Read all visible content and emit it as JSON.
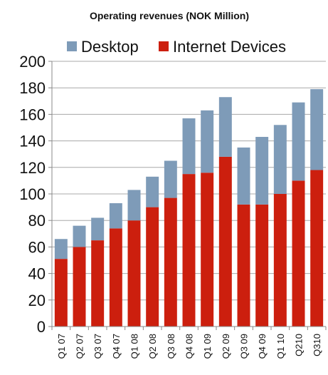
{
  "chart_data": {
    "type": "bar",
    "stacked": true,
    "title": "Operating revenues (NOK Million)",
    "categories": [
      "Q1 07",
      "Q2 07",
      "Q3 07",
      "Q4 07",
      "Q1 08",
      "Q2 08",
      "Q3 08",
      "Q4 08",
      "Q1 09",
      "Q2 09",
      "Q3 09",
      "Q4 09",
      "Q1 10",
      "Q210",
      "Q310"
    ],
    "series": [
      {
        "name": "Internet Devices",
        "color": "#cc1f0e",
        "values": [
          51,
          60,
          65,
          74,
          80,
          90,
          97,
          115,
          116,
          128,
          92,
          92,
          100,
          110,
          118
        ]
      },
      {
        "name": "Desktop",
        "color": "#7e9bb8",
        "values": [
          15,
          16,
          17,
          19,
          23,
          23,
          28,
          42,
          47,
          45,
          43,
          51,
          52,
          59,
          61
        ]
      }
    ],
    "ylim": [
      0,
      200
    ],
    "yticks": [
      0,
      20,
      40,
      60,
      80,
      100,
      120,
      140,
      160,
      180,
      200
    ],
    "grid": true,
    "legend_position": "top"
  }
}
